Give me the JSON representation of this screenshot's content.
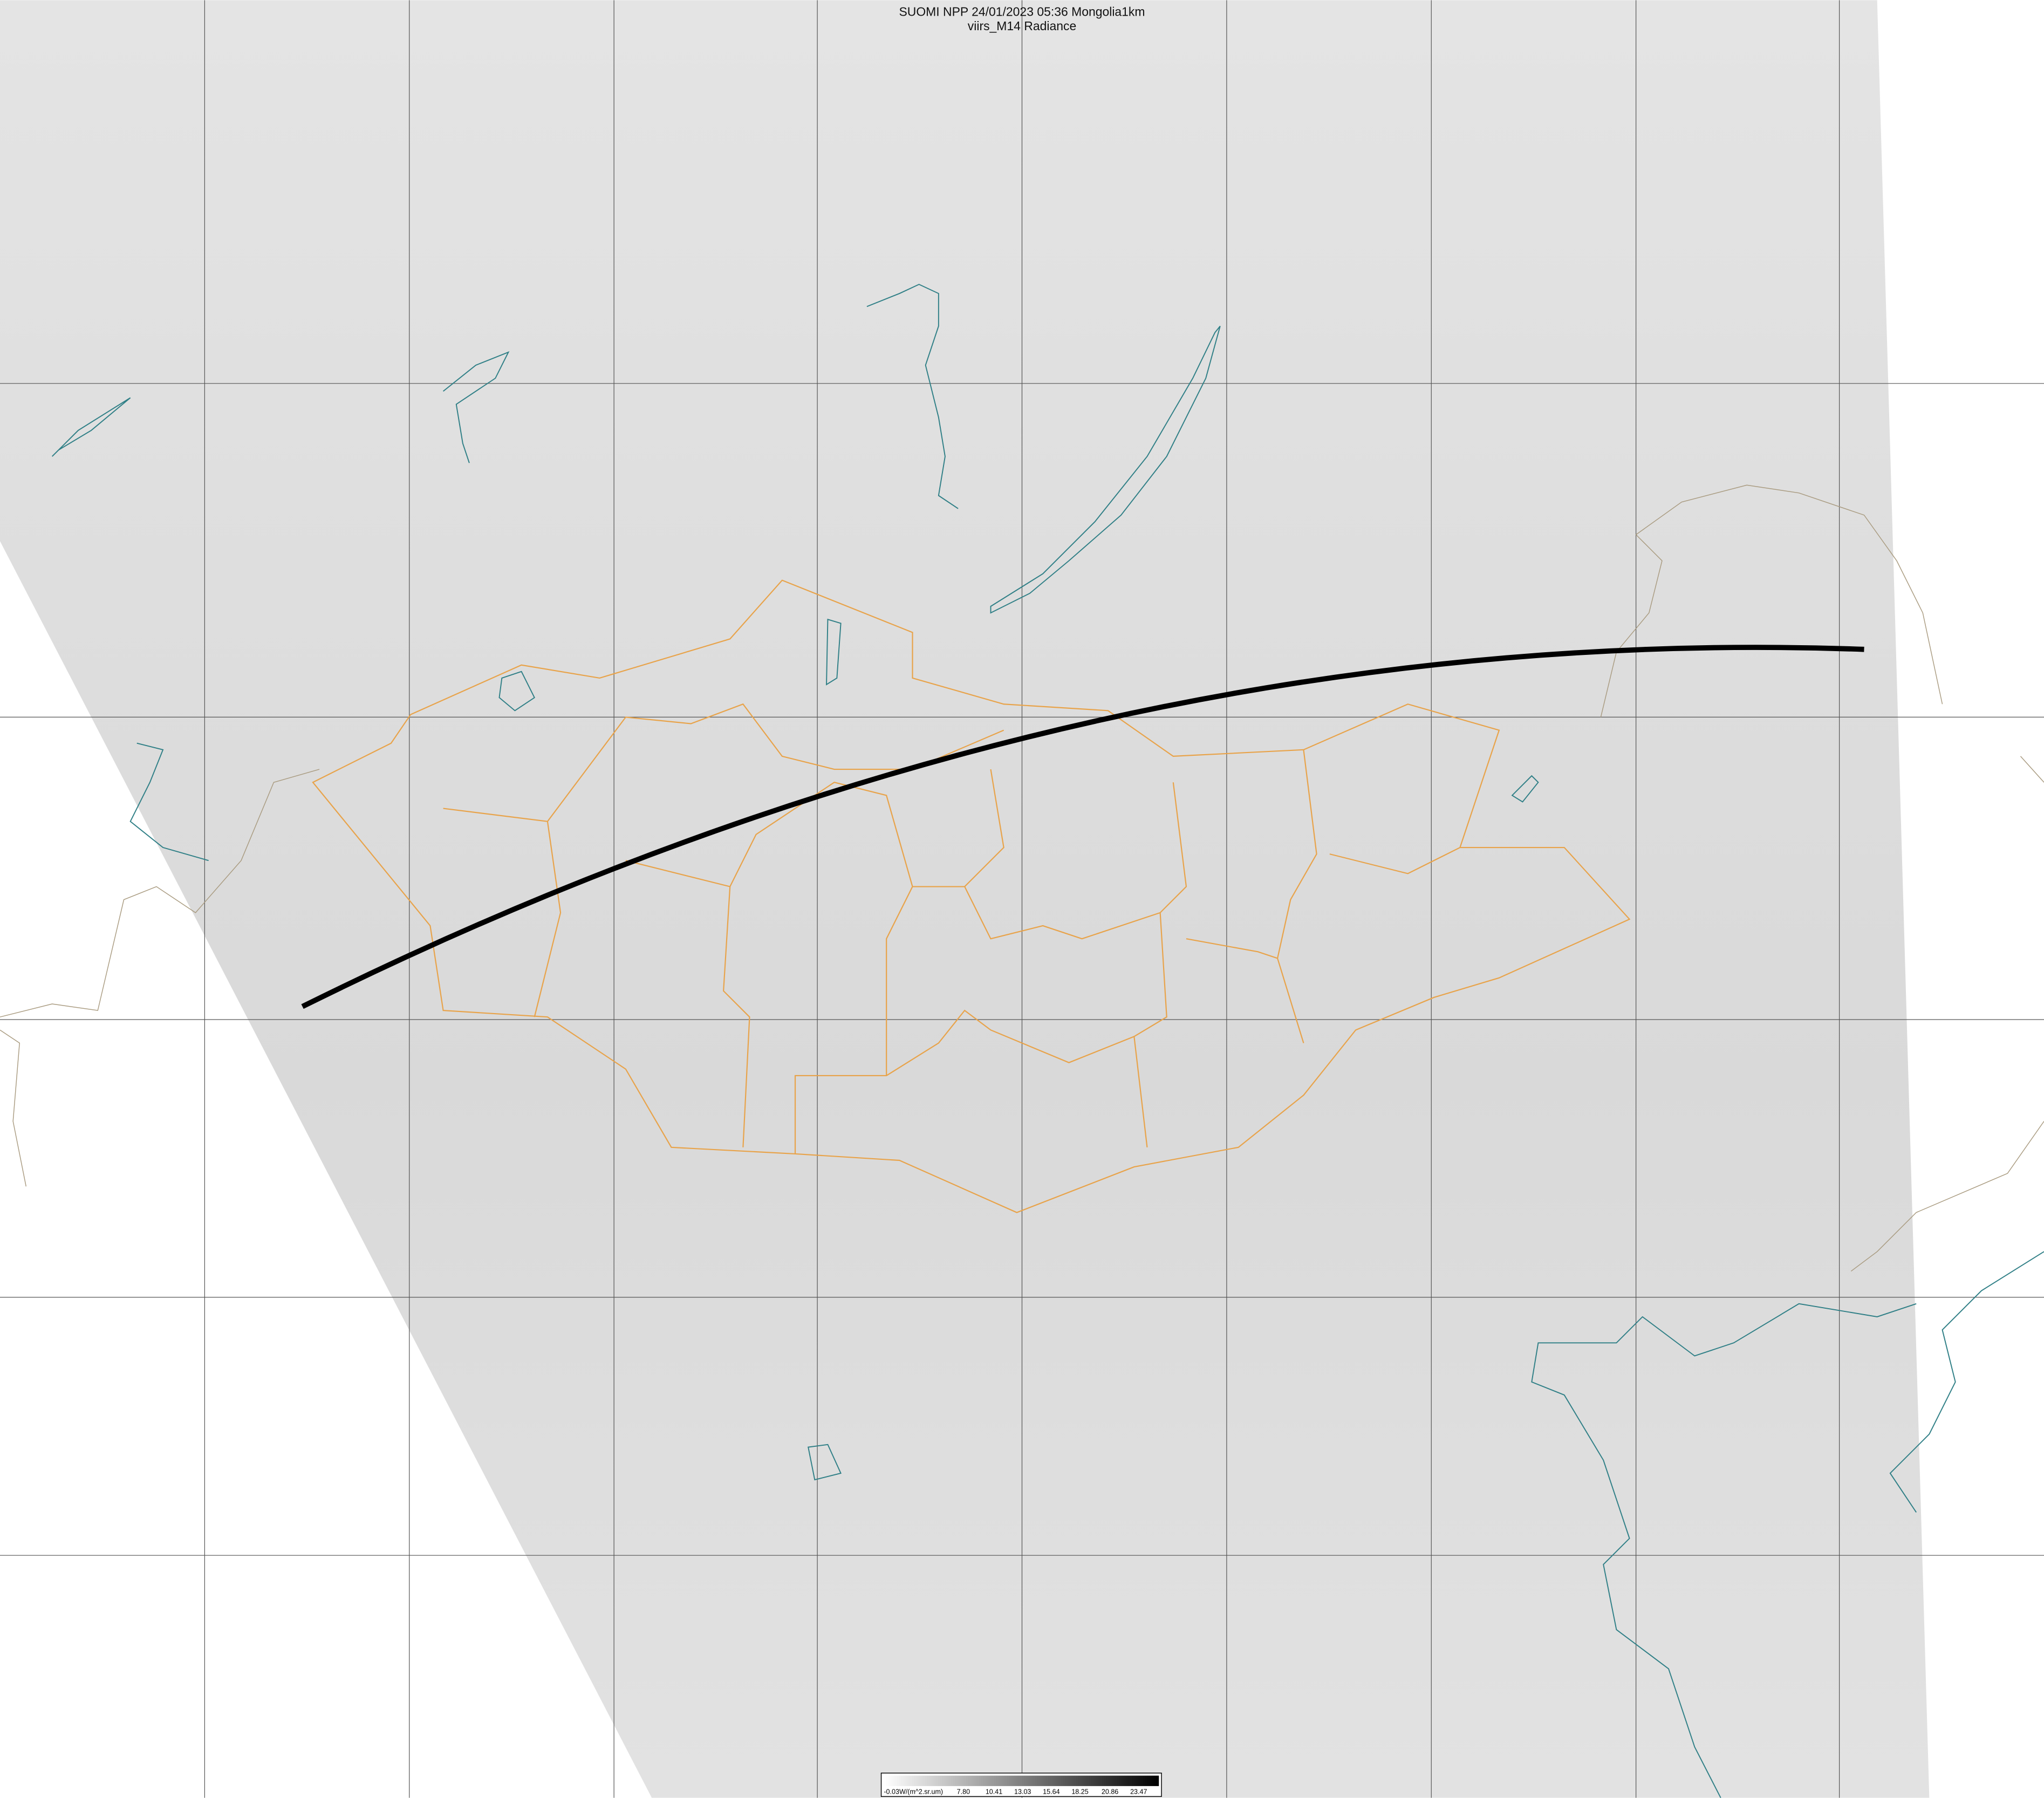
{
  "header": {
    "title": "SUOMI NPP 24/01/2023 05:36 Mongolia1km",
    "subtitle": "viirs_M14 Radiance"
  },
  "colorbar": {
    "labels": [
      "-0.03W/(m^2.sr.um)",
      "7.80",
      "10.41",
      "13.03",
      "15.64",
      "18.25",
      "20.86",
      "23.47"
    ]
  }
}
